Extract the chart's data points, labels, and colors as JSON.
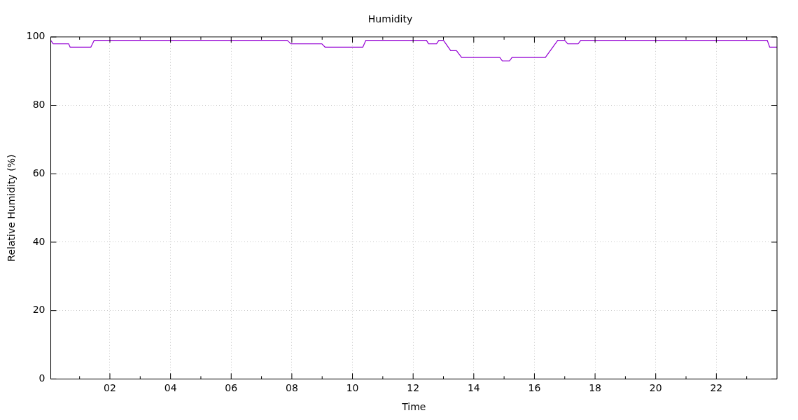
{
  "chart_data": {
    "type": "line",
    "title": "Humidity",
    "xlabel": "Time",
    "ylabel": "Relative Humidity (%)",
    "x": [
      0.05,
      0.13,
      0.64,
      0.69,
      1.37,
      1.48,
      7.85,
      7.97,
      8.99,
      9.1,
      10.34,
      10.44,
      12.44,
      12.51,
      12.77,
      12.85,
      13.0,
      13.24,
      13.43,
      13.6,
      14.86,
      14.94,
      15.18,
      15.26,
      16.36,
      16.77,
      17.0,
      17.1,
      17.44,
      17.53,
      23.68,
      23.76,
      24.0
    ],
    "series": [
      {
        "color": "#9400d3",
        "values": [
          99,
          98,
          98,
          97,
          97,
          99,
          99,
          98,
          98,
          97,
          97,
          99,
          99,
          98,
          98,
          99,
          99,
          96,
          96,
          94,
          94,
          93,
          93,
          94,
          94,
          99,
          99,
          98,
          98,
          99,
          99,
          97,
          97
        ]
      }
    ],
    "xlim": [
      0.05,
      24
    ],
    "xticks": [
      {
        "value": 1,
        "label": null
      },
      {
        "value": 2,
        "label": "02"
      },
      {
        "value": 3,
        "label": null
      },
      {
        "value": 4,
        "label": "04"
      },
      {
        "value": 5,
        "label": null
      },
      {
        "value": 6,
        "label": "06"
      },
      {
        "value": 7,
        "label": null
      },
      {
        "value": 8,
        "label": "08"
      },
      {
        "value": 9,
        "label": null
      },
      {
        "value": 10,
        "label": "10"
      },
      {
        "value": 11,
        "label": null
      },
      {
        "value": 12,
        "label": "12"
      },
      {
        "value": 13,
        "label": null
      },
      {
        "value": 14,
        "label": "14"
      },
      {
        "value": 15,
        "label": null
      },
      {
        "value": 16,
        "label": "16"
      },
      {
        "value": 17,
        "label": null
      },
      {
        "value": 18,
        "label": "18"
      },
      {
        "value": 19,
        "label": null
      },
      {
        "value": 20,
        "label": "20"
      },
      {
        "value": 21,
        "label": null
      },
      {
        "value": 22,
        "label": "22"
      },
      {
        "value": 23,
        "label": null
      }
    ],
    "ylim": [
      0,
      100
    ],
    "yticks": [
      0,
      20,
      40,
      60,
      80,
      100
    ],
    "grid": true,
    "legend": false,
    "marker": "none",
    "line_style": "solid"
  }
}
